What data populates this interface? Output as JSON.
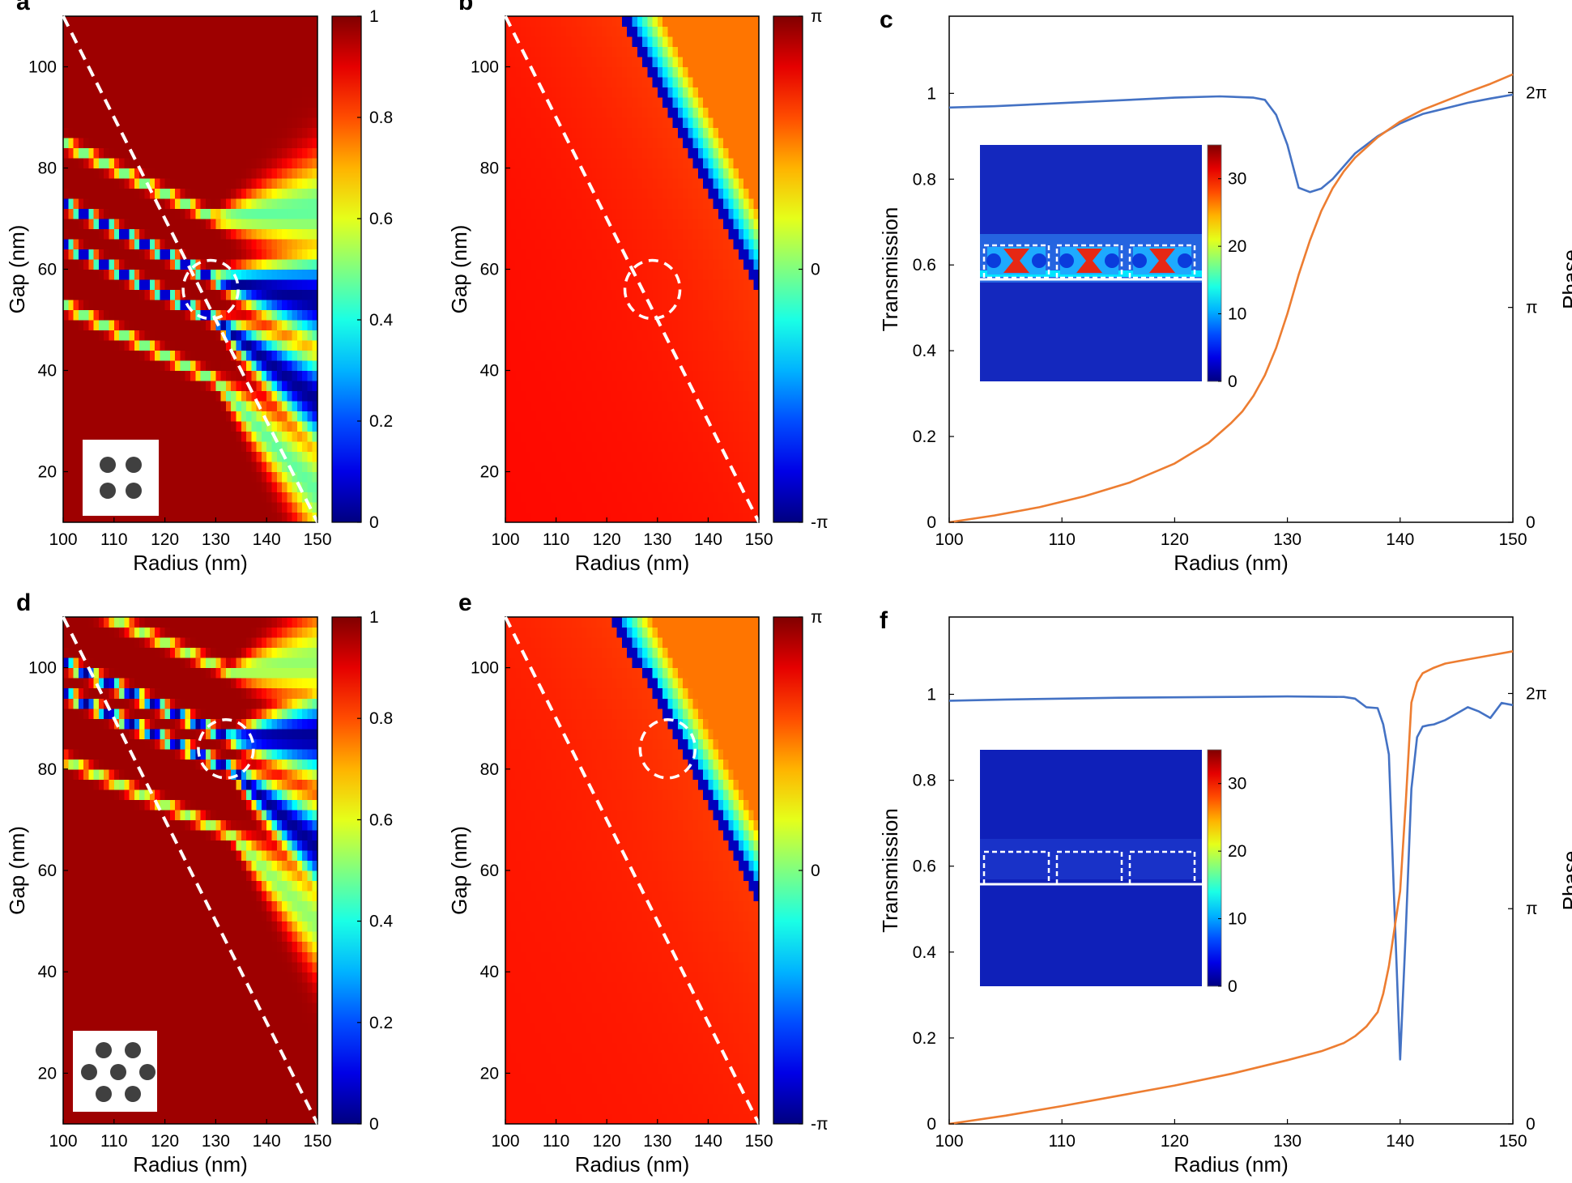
{
  "panel_labels": [
    "a",
    "b",
    "c",
    "d",
    "e",
    "f"
  ],
  "chart_data": [
    {
      "panel": "a",
      "type": "heatmap",
      "quantity": "transmission",
      "xlabel": "Radius (nm)",
      "ylabel": "Gap (nm)",
      "xlim": [
        100,
        150
      ],
      "ylim": [
        10,
        110
      ],
      "xticks": [
        "100",
        "110",
        "120",
        "130",
        "140",
        "150"
      ],
      "yticks": [
        "20",
        "40",
        "60",
        "80",
        "100"
      ],
      "colorbar": {
        "range": [
          0,
          1
        ],
        "ticks": [
          "0",
          "0.2",
          "0.4",
          "0.6",
          "0.8",
          "1"
        ]
      },
      "dashed_line": {
        "from": [
          100,
          110
        ],
        "to": [
          150,
          10
        ]
      },
      "circle": {
        "radius_nm": 129,
        "gap_nm": 56
      },
      "lattice_inset": "square"
    },
    {
      "panel": "b",
      "type": "heatmap",
      "quantity": "phase",
      "xlabel": "Radius (nm)",
      "ylabel": "Gap (nm)",
      "xlim": [
        100,
        150
      ],
      "ylim": [
        10,
        110
      ],
      "xticks": [
        "100",
        "110",
        "120",
        "130",
        "140",
        "150"
      ],
      "yticks": [
        "20",
        "40",
        "60",
        "80",
        "100"
      ],
      "colorbar": {
        "range": [
          "-π",
          "π"
        ],
        "ticks": [
          "-π",
          "0",
          "π"
        ]
      },
      "dashed_line": {
        "from": [
          100,
          110
        ],
        "to": [
          150,
          10
        ]
      },
      "circle": {
        "radius_nm": 129,
        "gap_nm": 56
      }
    },
    {
      "panel": "c",
      "type": "line",
      "xlabel": "Radius (nm)",
      "ylabel": "Transmission",
      "y2label": "Phase",
      "xlim": [
        100,
        150
      ],
      "ylim": [
        0,
        1.18
      ],
      "y2lim": [
        0,
        7.4
      ],
      "xticks": [
        "100",
        "110",
        "120",
        "130",
        "140",
        "150"
      ],
      "yticks": [
        "0",
        "0.2",
        "0.4",
        "0.6",
        "0.8",
        "1"
      ],
      "y2ticks": [
        "0",
        "π",
        "2π"
      ],
      "series": [
        {
          "name": "Transmission",
          "color": "#4472c4",
          "axis": "left",
          "x": [
            100,
            104,
            108,
            112,
            116,
            120,
            124,
            127,
            128,
            129,
            130,
            131,
            132,
            133,
            134,
            136,
            138,
            140,
            142,
            144,
            146,
            148,
            150
          ],
          "y": [
            0.967,
            0.97,
            0.975,
            0.98,
            0.985,
            0.99,
            0.993,
            0.99,
            0.985,
            0.95,
            0.88,
            0.78,
            0.77,
            0.778,
            0.8,
            0.86,
            0.9,
            0.93,
            0.952,
            0.965,
            0.978,
            0.988,
            0.997
          ]
        },
        {
          "name": "Phase",
          "color": "#ed7d31",
          "axis": "right",
          "x": [
            100,
            104,
            108,
            112,
            116,
            120,
            123,
            125,
            126,
            127,
            128,
            129,
            130,
            131,
            132,
            133,
            134,
            135,
            136,
            138,
            140,
            142,
            144,
            146,
            148,
            150
          ],
          "y": [
            0.0,
            0.1,
            0.22,
            0.38,
            0.58,
            0.86,
            1.16,
            1.45,
            1.62,
            1.85,
            2.15,
            2.55,
            3.05,
            3.62,
            4.12,
            4.55,
            4.88,
            5.13,
            5.33,
            5.63,
            5.86,
            6.03,
            6.16,
            6.29,
            6.41,
            6.55
          ]
        }
      ],
      "inset": {
        "type": "field_map",
        "colorbar_ticks": [
          "0",
          "10",
          "20",
          "30"
        ],
        "colorbar_max": 35
      }
    },
    {
      "panel": "d",
      "type": "heatmap",
      "quantity": "transmission",
      "xlabel": "Radius (nm)",
      "ylabel": "Gap (nm)",
      "xlim": [
        100,
        150
      ],
      "ylim": [
        10,
        110
      ],
      "xticks": [
        "100",
        "110",
        "120",
        "130",
        "140",
        "150"
      ],
      "yticks": [
        "20",
        "40",
        "60",
        "80",
        "100"
      ],
      "colorbar": {
        "range": [
          0,
          1
        ],
        "ticks": [
          "0",
          "0.2",
          "0.4",
          "0.6",
          "0.8",
          "1"
        ]
      },
      "dashed_line": {
        "from": [
          100,
          110
        ],
        "to": [
          150,
          10
        ]
      },
      "circle": {
        "radius_nm": 132,
        "gap_nm": 84
      },
      "lattice_inset": "hexagonal"
    },
    {
      "panel": "e",
      "type": "heatmap",
      "quantity": "phase",
      "xlabel": "Radius (nm)",
      "ylabel": "Gap (nm)",
      "xlim": [
        100,
        150
      ],
      "ylim": [
        10,
        110
      ],
      "xticks": [
        "100",
        "110",
        "120",
        "130",
        "140",
        "150"
      ],
      "yticks": [
        "20",
        "40",
        "60",
        "80",
        "100"
      ],
      "colorbar": {
        "range": [
          "-π",
          "π"
        ],
        "ticks": [
          "-π",
          "0",
          "π"
        ]
      },
      "dashed_line": {
        "from": [
          100,
          110
        ],
        "to": [
          150,
          10
        ]
      },
      "circle": {
        "radius_nm": 132,
        "gap_nm": 84
      }
    },
    {
      "panel": "f",
      "type": "line",
      "xlabel": "Radius (nm)",
      "ylabel": "Transmission",
      "y2label": "Phase",
      "xlim": [
        100,
        150
      ],
      "ylim": [
        0,
        1.18
      ],
      "y2lim": [
        0,
        7.4
      ],
      "xticks": [
        "100",
        "110",
        "120",
        "130",
        "140",
        "150"
      ],
      "yticks": [
        "0",
        "0.2",
        "0.4",
        "0.6",
        "0.8",
        "1"
      ],
      "y2ticks": [
        "0",
        "π",
        "2π"
      ],
      "series": [
        {
          "name": "Transmission",
          "color": "#4472c4",
          "axis": "left",
          "x": [
            100,
            105,
            110,
            115,
            120,
            125,
            130,
            135,
            136,
            137,
            138,
            138.5,
            139,
            139.5,
            140,
            140.5,
            141,
            141.5,
            142,
            142.5,
            143,
            144,
            145,
            146,
            147,
            148,
            149,
            150
          ],
          "y": [
            0.985,
            0.988,
            0.99,
            0.992,
            0.993,
            0.994,
            0.995,
            0.994,
            0.99,
            0.97,
            0.968,
            0.93,
            0.86,
            0.5,
            0.15,
            0.45,
            0.78,
            0.9,
            0.925,
            0.928,
            0.93,
            0.94,
            0.955,
            0.97,
            0.96,
            0.945,
            0.98,
            0.975
          ]
        },
        {
          "name": "Phase",
          "color": "#ed7d31",
          "axis": "right",
          "x": [
            100,
            105,
            110,
            115,
            120,
            125,
            130,
            133,
            135,
            136,
            137,
            138,
            138.5,
            139,
            139.5,
            140,
            140.5,
            141,
            141.5,
            142,
            143,
            144,
            146,
            148,
            150
          ],
          "y": [
            0.0,
            0.12,
            0.26,
            0.41,
            0.56,
            0.73,
            0.93,
            1.06,
            1.18,
            1.28,
            1.42,
            1.63,
            1.9,
            2.3,
            2.85,
            3.4,
            4.7,
            6.15,
            6.45,
            6.58,
            6.66,
            6.72,
            6.78,
            6.84,
            6.9
          ]
        }
      ],
      "inset": {
        "type": "field_map",
        "colorbar_ticks": [
          "0",
          "10",
          "20",
          "30"
        ],
        "colorbar_max": 35
      }
    }
  ]
}
